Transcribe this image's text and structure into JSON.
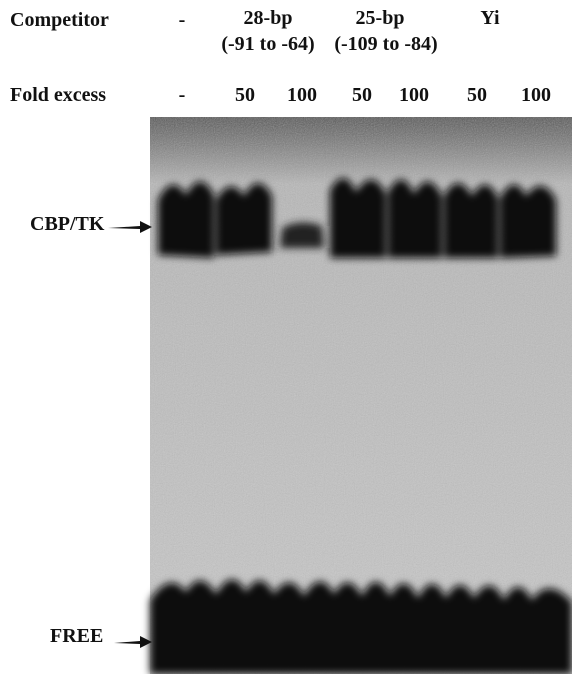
{
  "header": {
    "competitor_label": "Competitor",
    "fold_excess_label": "Fold excess"
  },
  "competitors": [
    {
      "name": "-"
    },
    {
      "name": "28-bp",
      "range": "(-91 to -64)"
    },
    {
      "name": "25-bp",
      "range": "(-109 to -84)"
    },
    {
      "name": "Yi"
    }
  ],
  "fold_excess": [
    "-",
    50,
    100,
    50,
    100,
    50,
    100
  ],
  "labels": {
    "complex": "CBP/TK",
    "free": "FREE"
  }
}
